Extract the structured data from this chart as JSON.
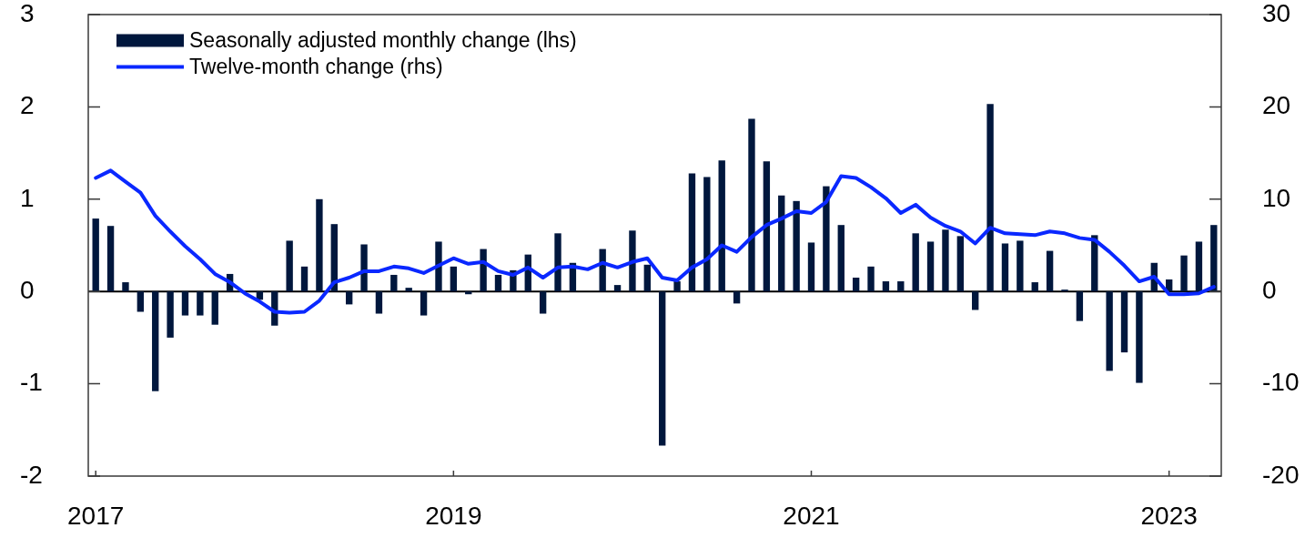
{
  "chart_data": {
    "type": "bar",
    "categories": [
      "2017",
      null,
      null,
      null,
      null,
      null,
      null,
      null,
      null,
      null,
      null,
      null,
      null,
      null,
      null,
      null,
      null,
      null,
      null,
      null,
      null,
      null,
      null,
      null,
      "2019",
      null,
      null,
      null,
      null,
      null,
      null,
      null,
      null,
      null,
      null,
      null,
      null,
      null,
      null,
      null,
      null,
      null,
      null,
      null,
      null,
      null,
      null,
      null,
      "2021",
      null,
      null,
      null,
      null,
      null,
      null,
      null,
      null,
      null,
      null,
      null,
      null,
      null,
      null,
      null,
      null,
      null,
      null,
      null,
      null,
      null,
      null,
      null,
      "2023",
      null,
      null,
      null
    ],
    "series": [
      {
        "name": "Seasonally adjusted monthly change (lhs)",
        "color": "#00173d",
        "values": [
          0.79,
          0.71,
          0.1,
          -0.22,
          -1.08,
          -0.5,
          -0.26,
          -0.26,
          -0.36,
          0.19,
          null,
          -0.09,
          -0.37,
          0.55,
          0.27,
          1.0,
          0.73,
          -0.14,
          0.51,
          -0.24,
          0.18,
          0.04,
          -0.26,
          0.54,
          0.27,
          -0.03,
          0.46,
          0.18,
          0.23,
          0.4,
          -0.24,
          0.63,
          0.31,
          null,
          0.46,
          0.07,
          0.66,
          0.29,
          -1.67,
          0.11,
          1.28,
          1.24,
          1.42,
          -0.13,
          1.87,
          1.41,
          1.04,
          0.98,
          0.53,
          1.14,
          0.72,
          0.15,
          0.27,
          0.11,
          0.11,
          0.63,
          0.54,
          0.67,
          0.6,
          -0.2,
          2.03,
          0.52,
          0.55,
          0.1,
          0.44,
          0.02,
          -0.32,
          0.61,
          -0.86,
          -0.66,
          -0.99,
          0.31,
          0.13,
          0.39,
          0.54,
          0.72
        ]
      },
      {
        "name": "Twelve-month change (rhs)",
        "type": "line",
        "axis": "y2",
        "color": "#0a28ff",
        "values": [
          12.3,
          13.1,
          11.9,
          10.7,
          8.2,
          6.5,
          4.9,
          3.5,
          1.9,
          1.0,
          -0.2,
          -1.1,
          -2.2,
          -2.3,
          -2.2,
          -1.0,
          1.0,
          1.5,
          2.2,
          2.2,
          2.7,
          2.5,
          2.0,
          2.8,
          3.6,
          3.0,
          3.2,
          2.2,
          1.8,
          2.6,
          1.5,
          2.6,
          2.7,
          2.4,
          3.1,
          2.6,
          3.2,
          3.6,
          1.5,
          1.2,
          2.6,
          3.5,
          5.0,
          4.3,
          5.9,
          7.2,
          7.9,
          8.7,
          8.5,
          9.7,
          12.5,
          12.3,
          11.3,
          10.1,
          8.5,
          9.4,
          8.0,
          7.1,
          6.5,
          5.2,
          6.9,
          6.3,
          6.2,
          6.1,
          6.5,
          6.3,
          5.8,
          5.6,
          4.3,
          2.8,
          1.1,
          1.6,
          -0.3,
          -0.3,
          -0.2,
          0.5
        ]
      }
    ],
    "ylim": [
      -2,
      3
    ],
    "yticks": [
      -2,
      -1,
      0,
      1,
      2,
      3
    ],
    "y2lim": [
      -20,
      30
    ],
    "y2ticks": [
      -20,
      -10,
      0,
      10,
      20,
      30
    ],
    "ref_lines": [
      {
        "axis": "y",
        "value": 0,
        "color": "#000000"
      }
    ],
    "legend": "top left",
    "marker": "none"
  }
}
